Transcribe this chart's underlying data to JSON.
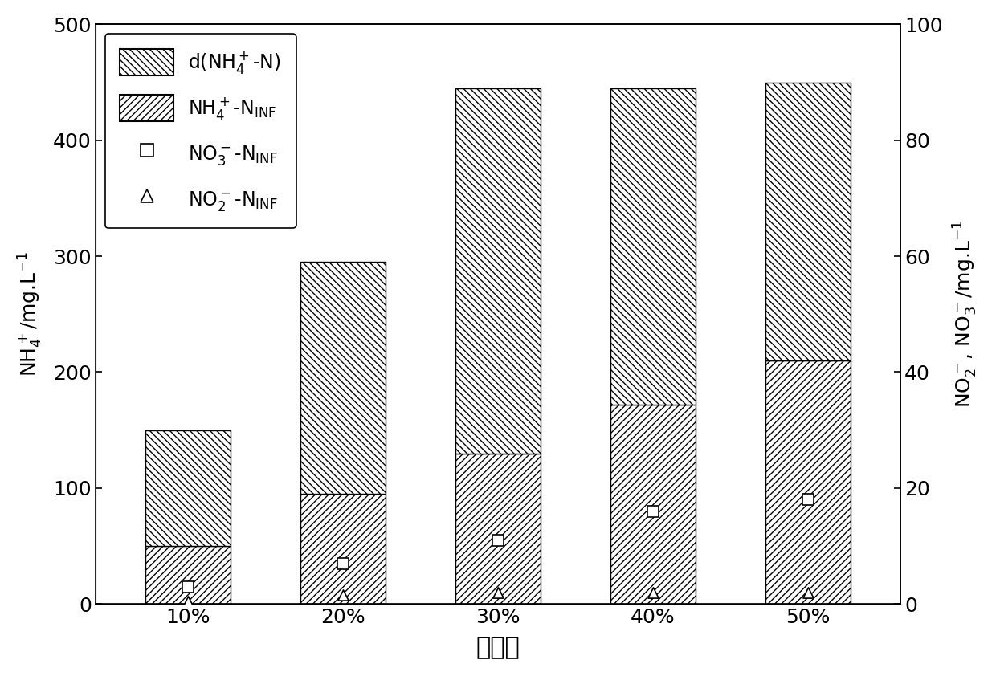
{
  "categories": [
    "10%",
    "20%",
    "30%",
    "40%",
    "50%"
  ],
  "nh4_inf": [
    50,
    95,
    130,
    172,
    210
  ],
  "nh4_total": [
    150,
    295,
    445,
    445,
    450
  ],
  "no3_inf_right": [
    3,
    7,
    11,
    16,
    18
  ],
  "no2_inf_right": [
    0.5,
    1.5,
    2,
    2,
    2
  ],
  "ylabel_left": "NH$_4^+$/mg.L$^{-1}$",
  "ylabel_right": "NO$_2^-$, NO$_3^-$/mg.L$^{-1}$",
  "xlabel": "接种率",
  "ylim_left": [
    0,
    500
  ],
  "ylim_right": [
    0,
    100
  ],
  "yticks_left": [
    0,
    100,
    200,
    300,
    400,
    500
  ],
  "yticks_right": [
    0,
    20,
    40,
    60,
    80,
    100
  ],
  "bar_width": 0.55,
  "legend_d_label": "d(NH$_4^+$-N)",
  "legend_nh4_label": "NH$_4^+$-N$_{\\mathrm{INF}}$",
  "legend_no3_label": "NO$_3^-$-N$_{\\mathrm{INF}}$",
  "legend_no2_label": "NO$_2^-$-N$_{\\mathrm{INF}}$"
}
